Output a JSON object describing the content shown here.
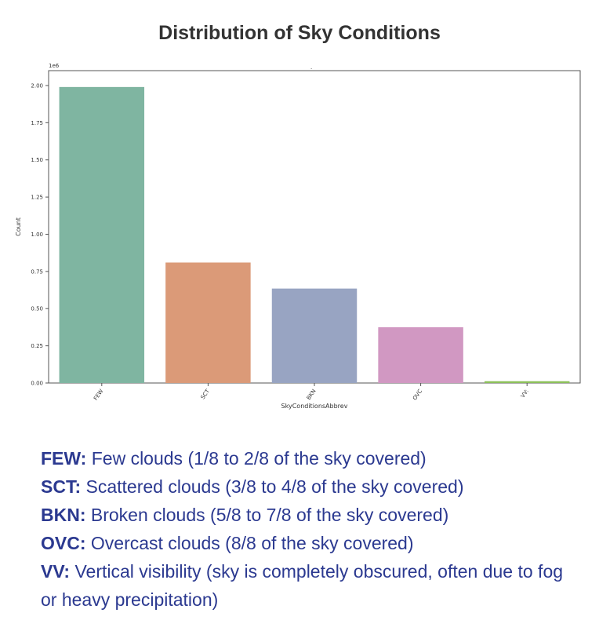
{
  "title": "Distribution of Sky Conditions",
  "chart_data": {
    "type": "bar",
    "categories": [
      "FEW",
      "SCT",
      "BKN",
      "OVC",
      "VV:"
    ],
    "values": [
      1990000,
      810000,
      635000,
      375000,
      12000
    ],
    "colors": [
      "#7fb5a1",
      "#db9a78",
      "#98a4c2",
      "#d198c2",
      "#8cc05a"
    ],
    "xlabel": "SkyConditionsAbbrev",
    "ylabel": "Count",
    "scale_note": "1e6",
    "yticks": [
      "0.00",
      "0.25",
      "0.50",
      "0.75",
      "1.00",
      "1.25",
      "1.50",
      "1.75",
      "2.00"
    ],
    "ylim": [
      0,
      2.1
    ],
    "grid": false,
    "stray_mark": "."
  },
  "legend": [
    {
      "abbr": "FEW:",
      "text": "Few clouds (1/8 to 2/8 of the sky covered)"
    },
    {
      "abbr": "SCT:",
      "text": "Scattered clouds (3/8 to 4/8 of the sky covered)"
    },
    {
      "abbr": "BKN:",
      "text": "Broken clouds (5/8 to 7/8 of the sky covered)"
    },
    {
      "abbr": "OVC:",
      "text": "Overcast clouds (8/8 of the sky covered)"
    },
    {
      "abbr": "VV:",
      "text": "Vertical visibility (sky is completely obscured, often due to fog or heavy precipitation)"
    }
  ],
  "colors": {
    "legend_text": "#2b3990",
    "title_text": "#333333",
    "axis": "#555555"
  }
}
